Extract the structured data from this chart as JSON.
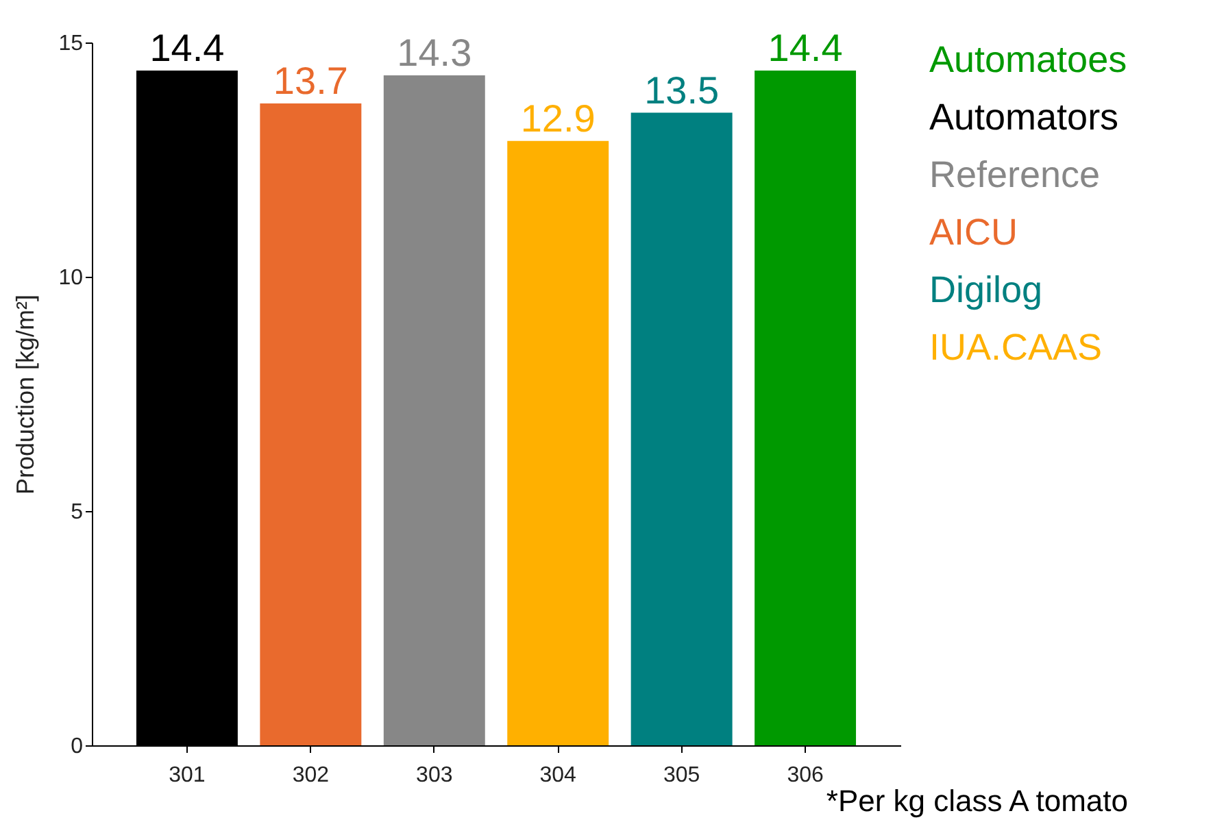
{
  "chart_data": {
    "type": "bar",
    "ylabel": "Production [kg/m²]",
    "categories": [
      "301",
      "302",
      "303",
      "304",
      "305",
      "306"
    ],
    "series": [
      {
        "name": "Automatoes",
        "color": "#009900",
        "values": [
          null,
          null,
          null,
          null,
          null,
          14.4
        ]
      },
      {
        "name": "Automators",
        "color": "#000000",
        "values": [
          14.4,
          null,
          null,
          null,
          null,
          null
        ]
      },
      {
        "name": "Reference",
        "color": "#878787",
        "values": [
          null,
          null,
          14.3,
          null,
          null,
          null
        ]
      },
      {
        "name": "AICU",
        "color": "#e96a2d",
        "values": [
          null,
          13.7,
          null,
          null,
          null,
          null
        ]
      },
      {
        "name": "Digilog",
        "color": "#008080",
        "values": [
          null,
          null,
          null,
          null,
          13.5,
          null
        ]
      },
      {
        "name": "IUA.CAAS",
        "color": "#ffb000",
        "values": [
          null,
          null,
          null,
          12.9,
          null,
          null
        ]
      }
    ],
    "ylim": [
      0,
      15
    ],
    "yticks": [
      0,
      5,
      10,
      15
    ],
    "data_labels": true,
    "legend": "right",
    "annotations": [
      "*Per kg class A tomato"
    ]
  }
}
